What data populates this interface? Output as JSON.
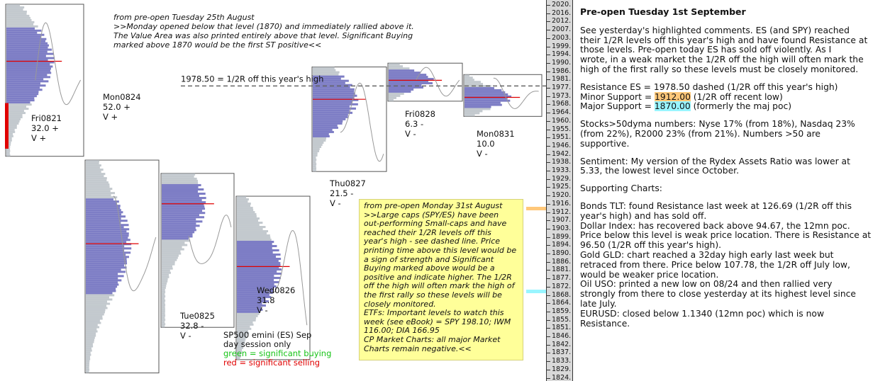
{
  "chart_data": {
    "type": "market-profile",
    "instrument": "SP500 emini  (ES)  Sep",
    "session": "day session only",
    "legend": [
      {
        "label": "green = significant buying",
        "color": "#17c417"
      },
      {
        "label": "red = significant selling",
        "color": "#e00000"
      }
    ],
    "y_axis_ticks": [
      "2020.",
      "2016.",
      "2012.",
      "2007.",
      "2003.",
      "1999.",
      "1994.",
      "1990.",
      "1986.",
      "1981.",
      "1977.",
      "1973.",
      "1968.",
      "1964.",
      "1960.",
      "1955.",
      "1951.",
      "1946.",
      "1942.",
      "1938.",
      "1933.",
      "1929.",
      "1925.",
      "1920.",
      "1916.",
      "1912.",
      "1907.",
      "1903.",
      "1899.",
      "1894.",
      "1890.",
      "1886.",
      "1881.",
      "1877.",
      "1872.",
      "1868.",
      "1864.",
      "1859.",
      "1855.",
      "1851.",
      "1846.",
      "1842.",
      "1837.",
      "1833.",
      "1829.",
      "1824."
    ],
    "ylim": [
      1824,
      2020
    ],
    "reference_line": {
      "value": 1978.5,
      "label": "1978.50 = 1/2R off this year's high",
      "style": "dashed"
    },
    "sessions": [
      {
        "date": "Fri0821",
        "delta": "32.0 +",
        "vote": "V +",
        "high": 2020,
        "low": 1940,
        "poc": 1990,
        "va_high": 2008,
        "va_low": 1968,
        "selling": true
      },
      {
        "date": "Mon0824",
        "delta": "52.0 +",
        "vote": "V +",
        "high": 1938,
        "low": 1826,
        "poc": 1894,
        "va_high": 1918,
        "va_low": 1868,
        "selling": false
      },
      {
        "date": "Tue0825",
        "delta": "32.8 -",
        "vote": "V -",
        "high": 1931,
        "low": 1850,
        "poc": 1915,
        "va_high": 1925,
        "va_low": 1896,
        "selling": false
      },
      {
        "date": "Wed0826",
        "delta": "31.8",
        "vote": "V -",
        "high": 1919,
        "low": 1833,
        "poc": 1882,
        "va_high": 1896,
        "va_low": 1858,
        "selling": false
      },
      {
        "date": "Thu0827",
        "delta": "21.5 -",
        "vote": "V -",
        "high": 1987,
        "low": 1932,
        "poc": 1970,
        "va_high": 1982,
        "va_low": 1950,
        "selling": false
      },
      {
        "date": "Fri0828",
        "delta": "6.3 -",
        "vote": "V -",
        "high": 1989,
        "low": 1969,
        "poc": 1980,
        "va_high": 1986,
        "va_low": 1974,
        "selling": false
      },
      {
        "date": "Mon0831",
        "delta": "10.0",
        "vote": "V -",
        "high": 1983,
        "low": 1961,
        "poc": 1971,
        "va_high": 1976,
        "va_low": 1965,
        "selling": false
      }
    ],
    "markers": [
      {
        "value": 1912,
        "color": "#ffc87a"
      },
      {
        "value": 1870,
        "color": "#99f5ff"
      }
    ]
  },
  "notes": {
    "top": [
      "from pre-open Tuesday 25th August",
      ">>Monday opened below that level (1870) and immediately rallied above it.",
      "The Value Area was also printed entirely above that level.  Significant Buying",
      "marked above 1870 would be the first ST positive<<"
    ],
    "yellow": [
      "from pre-open Monday 31st August",
      ">>Large caps (SPY/ES) have been",
      "out-performing Small-caps and have",
      "reached their 1/2R levels off this",
      "year's high - see dashed line.  Price",
      "printing time above this level would be",
      "a sign of strength and Significant",
      "Buying marked above would be a",
      "positive and indicate higher.  The 1/2R",
      "off the high will often mark the high of",
      "the first rally so these levels will be",
      "closely monitored.",
      "ETFs: Important levels to watch this",
      "week (see eBook) = SPY 198.10; IWM",
      "116.00; DIA 166.95",
      "CP Market Charts: all major Market",
      "Charts remain negative.<<"
    ]
  },
  "commentary": {
    "title": "Pre-open Tuesday 1st September",
    "p1": [
      "See yesterday's highlighted comments. ES (and SPY) reached",
      "their 1/2R levels off this year's high and have found Resistance at",
      "those levels.  Pre-open today ES has sold off violently.  As I",
      "wrote,  in a weak market the 1/2R off the high will often mark the",
      "high of the first rally so these levels must be closely monitored."
    ],
    "resistance": "Resistance ES = 1978.50 dashed (1/2R off this year's high)",
    "minor_prefix": "Minor Support = ",
    "minor_value": "1912.00",
    "minor_suffix": " (1/2R off recent low)",
    "major_prefix": "Major Support = ",
    "major_value": "1870.00",
    "major_suffix": " (formerly the maj poc)",
    "stocks": [
      "Stocks>50dyma numbers: Nyse 17% (from 18%), Nasdaq 23%",
      "(from 22%), R2000 23% (from 21%).  Numbers >50 are",
      "supportive."
    ],
    "sentiment": [
      "Sentiment:  My version of the Rydex Assets Ratio was lower at",
      "5.33, the lowest level since October."
    ],
    "supporting_heading": "Supporting Charts:",
    "supporting": [
      "Bonds TLT:  found Resistance last week at 126.69  (1/2R off this",
      "year's high) and has sold off.",
      "Dollar Index: has recovered back above 94.67, the 12mn poc.",
      "Price below this level is weak price location. There is Resistance at",
      "96.50 (1/2R off this year's high).",
      "Gold GLD: chart reached a 32day high early last week but",
      "retraced from there.  Price below 107.78, the 1/2R off July low,",
      "would be weaker price location.",
      "Oil USO: printed a new low on 08/24 and then rallied very",
      "strongly from there to close yesterday at its highest level since",
      "late July.",
      "EURUSD: closed below 1.1340 (12mn poc) which is now",
      "Resistance."
    ]
  }
}
